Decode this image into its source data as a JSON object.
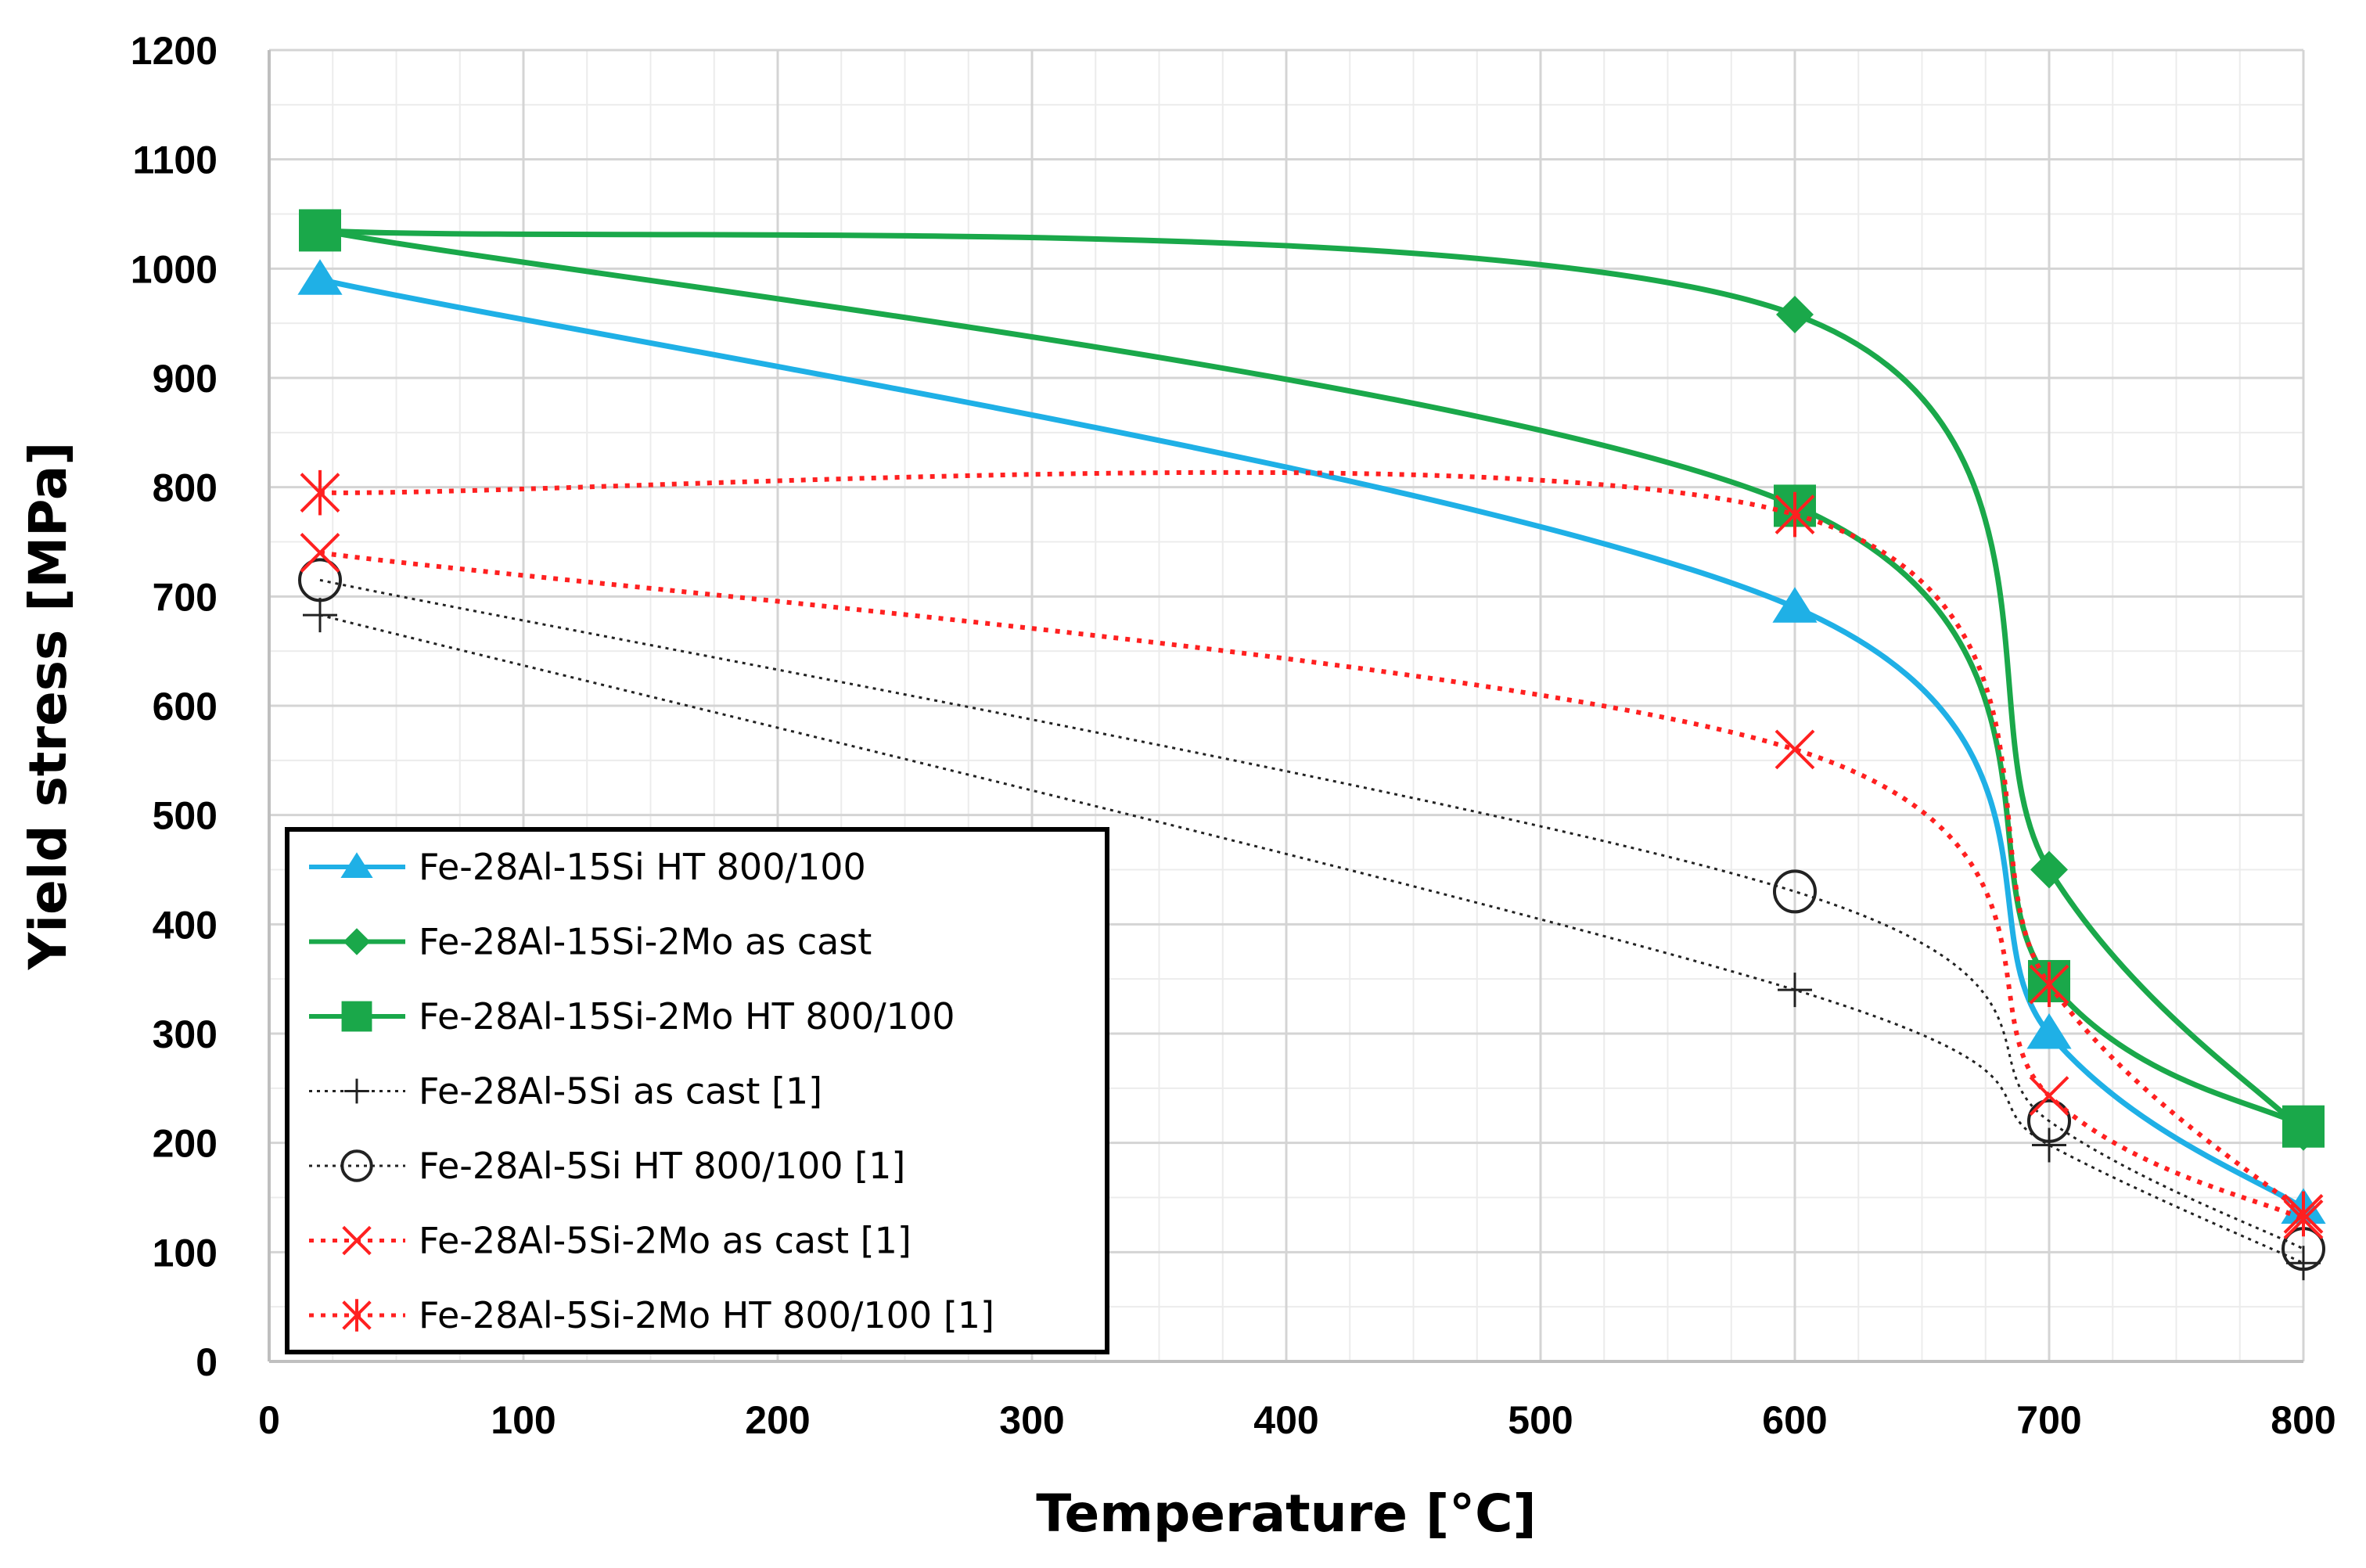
{
  "chart_data": {
    "type": "line",
    "title": "",
    "xlabel": "Temperature [°C]",
    "ylabel": "Yield stress [MPa]",
    "xlim": [
      0,
      800
    ],
    "ylim": [
      0,
      1200
    ],
    "x_ticks": [
      0,
      100,
      200,
      300,
      400,
      500,
      600,
      700,
      800
    ],
    "y_ticks": [
      0,
      100,
      200,
      300,
      400,
      500,
      600,
      700,
      800,
      900,
      1000,
      1100,
      1200
    ],
    "x_tick_labels": [
      "0",
      "100",
      "200",
      "300",
      "400",
      "500",
      "600",
      "700",
      "800"
    ],
    "y_tick_labels": [
      "0",
      "100",
      "200",
      "300",
      "400",
      "500",
      "600",
      "700",
      "800",
      "900",
      "1000",
      "1100",
      "1200"
    ],
    "grid": true,
    "legend_position": "bottom-left",
    "series": [
      {
        "name": "Fe-28Al-15Si HT 800/100",
        "x": [
          20,
          600,
          700,
          800
        ],
        "y": [
          990,
          690,
          300,
          140
        ],
        "color": "#1fb0e6",
        "marker": "triangle",
        "line_style": "solid"
      },
      {
        "name": "Fe-28Al-15Si-2Mo as cast",
        "x": [
          20,
          600,
          700,
          800
        ],
        "y": [
          1035,
          958,
          450,
          210
        ],
        "color": "#1aa84a",
        "marker": "diamond",
        "line_style": "solid"
      },
      {
        "name": "Fe-28Al-15Si-2Mo HT 800/100",
        "x": [
          20,
          600,
          700,
          800
        ],
        "y": [
          1035,
          783,
          348,
          215
        ],
        "color": "#1aa84a",
        "marker": "square",
        "line_style": "solid"
      },
      {
        "name": "Fe-28Al-5Si as cast [1]",
        "x": [
          20,
          600,
          700,
          800
        ],
        "y": [
          683,
          340,
          198,
          90
        ],
        "color": "#222222",
        "marker": "plus",
        "line_style": "dotted"
      },
      {
        "name": "Fe-28Al-5Si HT 800/100 [1]",
        "x": [
          20,
          600,
          700,
          800
        ],
        "y": [
          715,
          430,
          220,
          103
        ],
        "color": "#222222",
        "marker": "circle",
        "line_style": "dotted"
      },
      {
        "name": "Fe-28Al-5Si-2Mo as cast [1]",
        "x": [
          20,
          600,
          700,
          800
        ],
        "y": [
          740,
          560,
          243,
          130
        ],
        "color": "#ff2020",
        "marker": "x",
        "line_style": "dotted"
      },
      {
        "name": "Fe-28Al-5Si-2Mo HT 800/100 [1]",
        "x": [
          20,
          600,
          700,
          800
        ],
        "y": [
          795,
          775,
          345,
          135
        ],
        "color": "#ff2020",
        "marker": "asterisk",
        "line_style": "dotted"
      }
    ]
  }
}
